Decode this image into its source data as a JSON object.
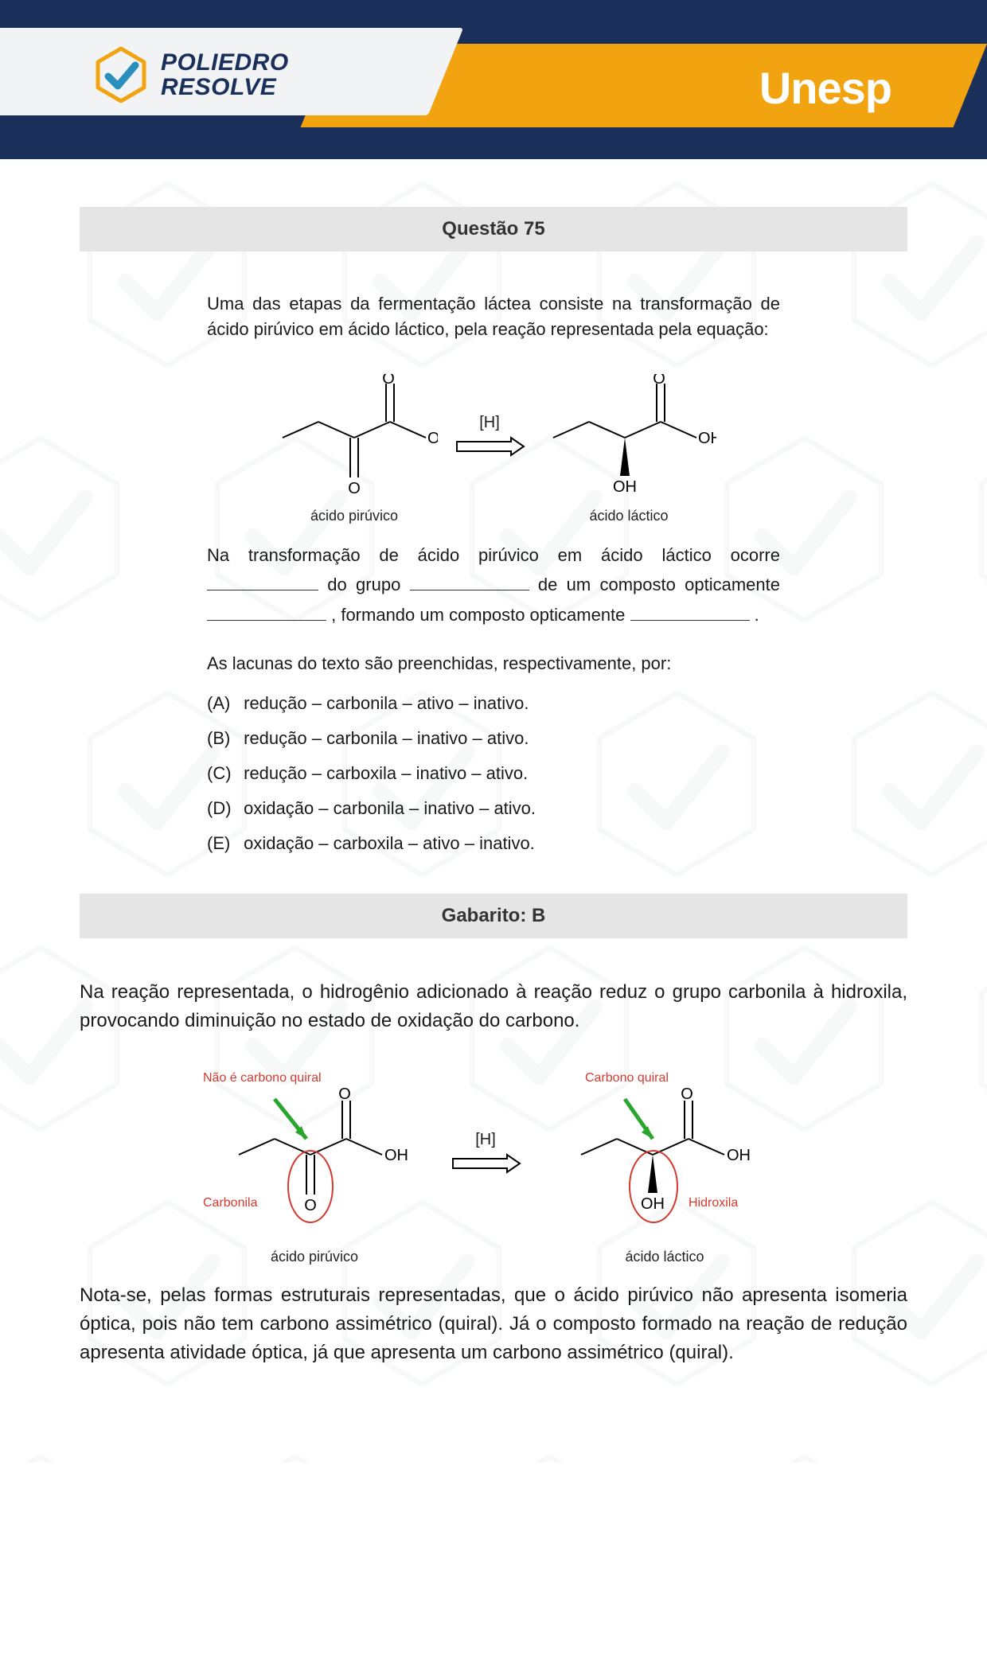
{
  "header": {
    "brand_line1": "POLIEDRO",
    "brand_line2": "RESOLVE",
    "exam": "Unesp",
    "colors": {
      "navy": "#1a2f5a",
      "orange": "#f2a310",
      "white_panel": "#f2f3f5",
      "check_stroke": "#f2a310",
      "check_fill": "#2b8fbd"
    }
  },
  "question": {
    "title": "Questão 75",
    "intro": "Uma das etapas da fermentação láctea consiste na transformação de ácido pirúvico em ácido láctico, pela reação representada pela equação:",
    "reaction": {
      "arrow_label": "[H]",
      "left_label": "ácido pirúvico",
      "right_label": "ácido láctico"
    },
    "fill": {
      "seg1": "Na transformação de ácido pirúvico em ácido láctico ocorre ",
      "seg2": " do grupo ",
      "seg3": " de um composto opticamente ",
      "seg4": " , formando um composto opticamente ",
      "seg5": " ."
    },
    "prompt": "As lacunas do texto são preenchidas, respectivamente, por:",
    "options": [
      {
        "letter": "(A)",
        "text": "redução – carbonila – ativo – inativo."
      },
      {
        "letter": "(B)",
        "text": "redução – carbonila – inativo – ativo."
      },
      {
        "letter": "(C)",
        "text": "redução – carboxila – inativo – ativo."
      },
      {
        "letter": "(D)",
        "text": "oxidação – carbonila – inativo – ativo."
      },
      {
        "letter": "(E)",
        "text": "oxidação – carboxila – ativo – inativo."
      }
    ]
  },
  "answer": {
    "title": "Gabarito: B",
    "para1": "Na reação representada, o hidrogênio adicionado à reação reduz o grupo carbonila à hidroxila, provocando diminuição no estado de oxidação do carbono.",
    "diagram": {
      "arrow_label": "[H]",
      "left_label": "ácido pirúvico",
      "right_label": "ácido láctico",
      "ann_left_top": "Não é carbono quiral",
      "ann_left_bottom": "Carbonila",
      "ann_right_top": "Carbono quiral",
      "ann_right_bottom": "Hidroxila",
      "ann_color": "#d43a2f",
      "arrow_color": "#2aa52d"
    },
    "para2": "Nota-se, pelas formas estruturais representadas, que o ácido pirúvico não apresenta isomeria óptica, pois não tem carbono assimétrico (quiral). Já o composto formado na reação de redução apresenta atividade óptica, já que apresenta um carbono assimétrico (quiral)."
  },
  "styling": {
    "title_bar_bg": "#e5e5e5",
    "body_font_size": 22,
    "explain_font_size": 24,
    "bg_hex_stroke": "#b8bdc2"
  }
}
